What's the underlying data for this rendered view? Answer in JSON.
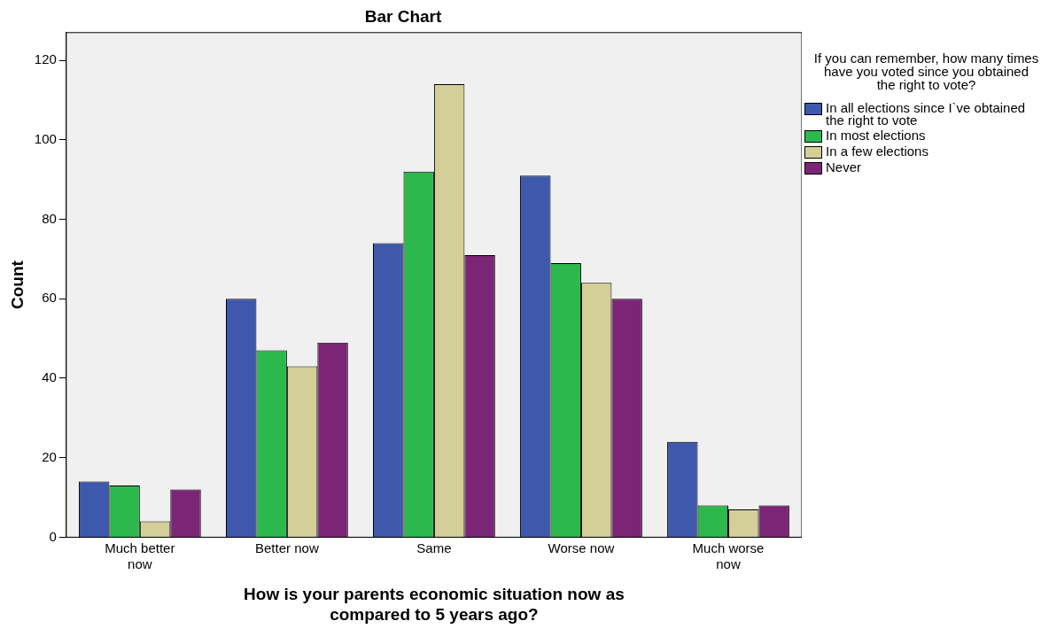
{
  "chart_data": {
    "type": "bar",
    "title": "Bar Chart",
    "xlabel": "How is your parents economic situation now as compared to 5 years ago?",
    "ylabel": "Count",
    "legend_title": "If you can remember, how many times have you voted since you obtained the right to vote?",
    "legend": "right",
    "categories": [
      "Much better now",
      "Better now",
      "Same",
      "Worse now",
      "Much worse now"
    ],
    "ylim": [
      0,
      127
    ],
    "yticks": [
      0,
      20,
      40,
      60,
      80,
      100,
      120
    ],
    "series": [
      {
        "name": "In all elections since I`ve obtained the right to vote",
        "color": "#3e58ac",
        "values": [
          14,
          60,
          74,
          91,
          24
        ]
      },
      {
        "name": "In most elections",
        "color": "#2db84d",
        "values": [
          13,
          47,
          92,
          69,
          8
        ]
      },
      {
        "name": "In a few elections",
        "color": "#d4cf99",
        "values": [
          4,
          43,
          114,
          64,
          7
        ]
      },
      {
        "name": "Never",
        "color": "#7b2577",
        "values": [
          12,
          49,
          71,
          60,
          8
        ]
      }
    ]
  }
}
